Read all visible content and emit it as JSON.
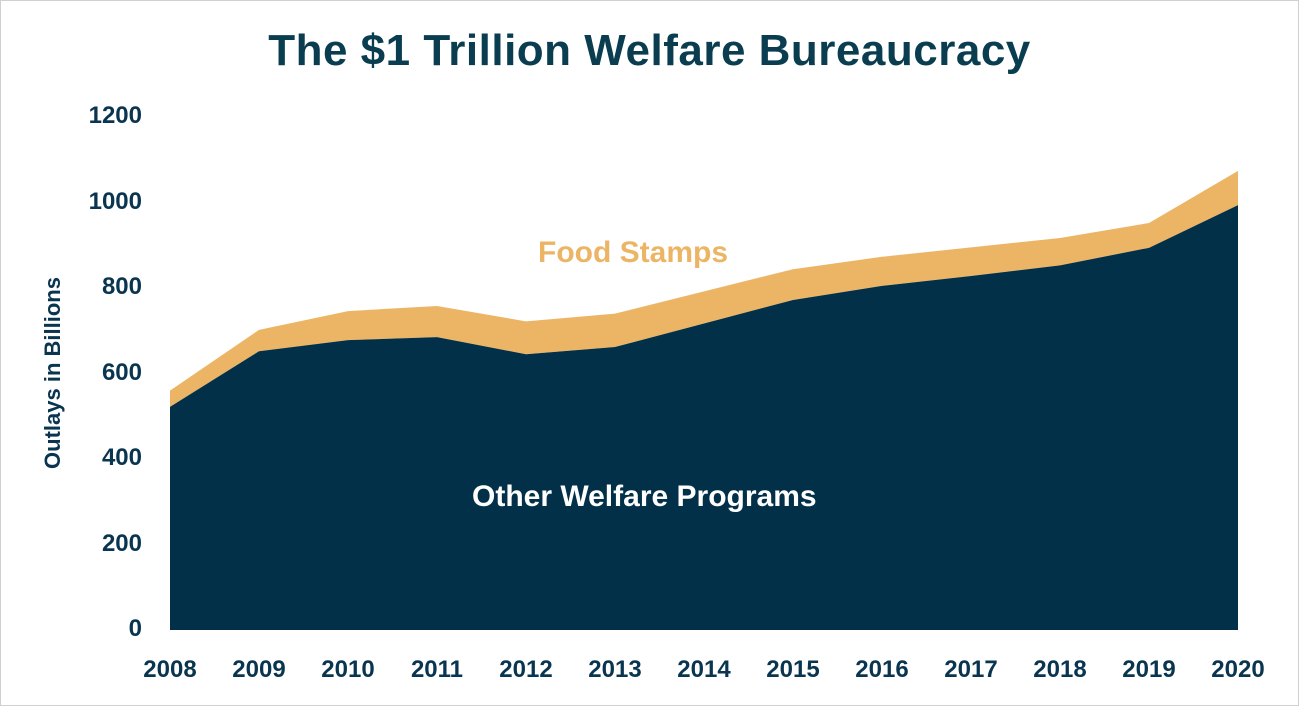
{
  "chart_data": {
    "type": "area",
    "stacked": true,
    "title": "The $1 Trillion Welfare Bureaucracy",
    "xlabel": "",
    "ylabel": "Outlays in Billions",
    "ylim": [
      0,
      1200
    ],
    "yticks": [
      0,
      200,
      400,
      600,
      800,
      1000,
      1200
    ],
    "grid": false,
    "legend": "inline labels",
    "categories": [
      "2008",
      "2009",
      "2010",
      "2011",
      "2012",
      "2013",
      "2014",
      "2015",
      "2016",
      "2017",
      "2018",
      "2019",
      "2020"
    ],
    "series": [
      {
        "name": "Other Welfare Programs",
        "color": "#033049",
        "values": [
          522,
          652,
          678,
          685,
          645,
          662,
          717,
          772,
          805,
          828,
          853,
          894,
          994
        ]
      },
      {
        "name": "Food Stamps",
        "color": "#ecb565",
        "values": [
          38,
          50,
          68,
          73,
          77,
          78,
          75,
          72,
          68,
          67,
          64,
          58,
          80
        ]
      }
    ],
    "totals": [
      560,
      702,
      746,
      758,
      722,
      740,
      792,
      844,
      873,
      895,
      917,
      952,
      1074
    ]
  },
  "labels": {
    "food": "Food Stamps",
    "other": "Other Welfare Programs"
  },
  "yticks": [
    "0",
    "200",
    "400",
    "600",
    "800",
    "1000",
    "1200"
  ]
}
